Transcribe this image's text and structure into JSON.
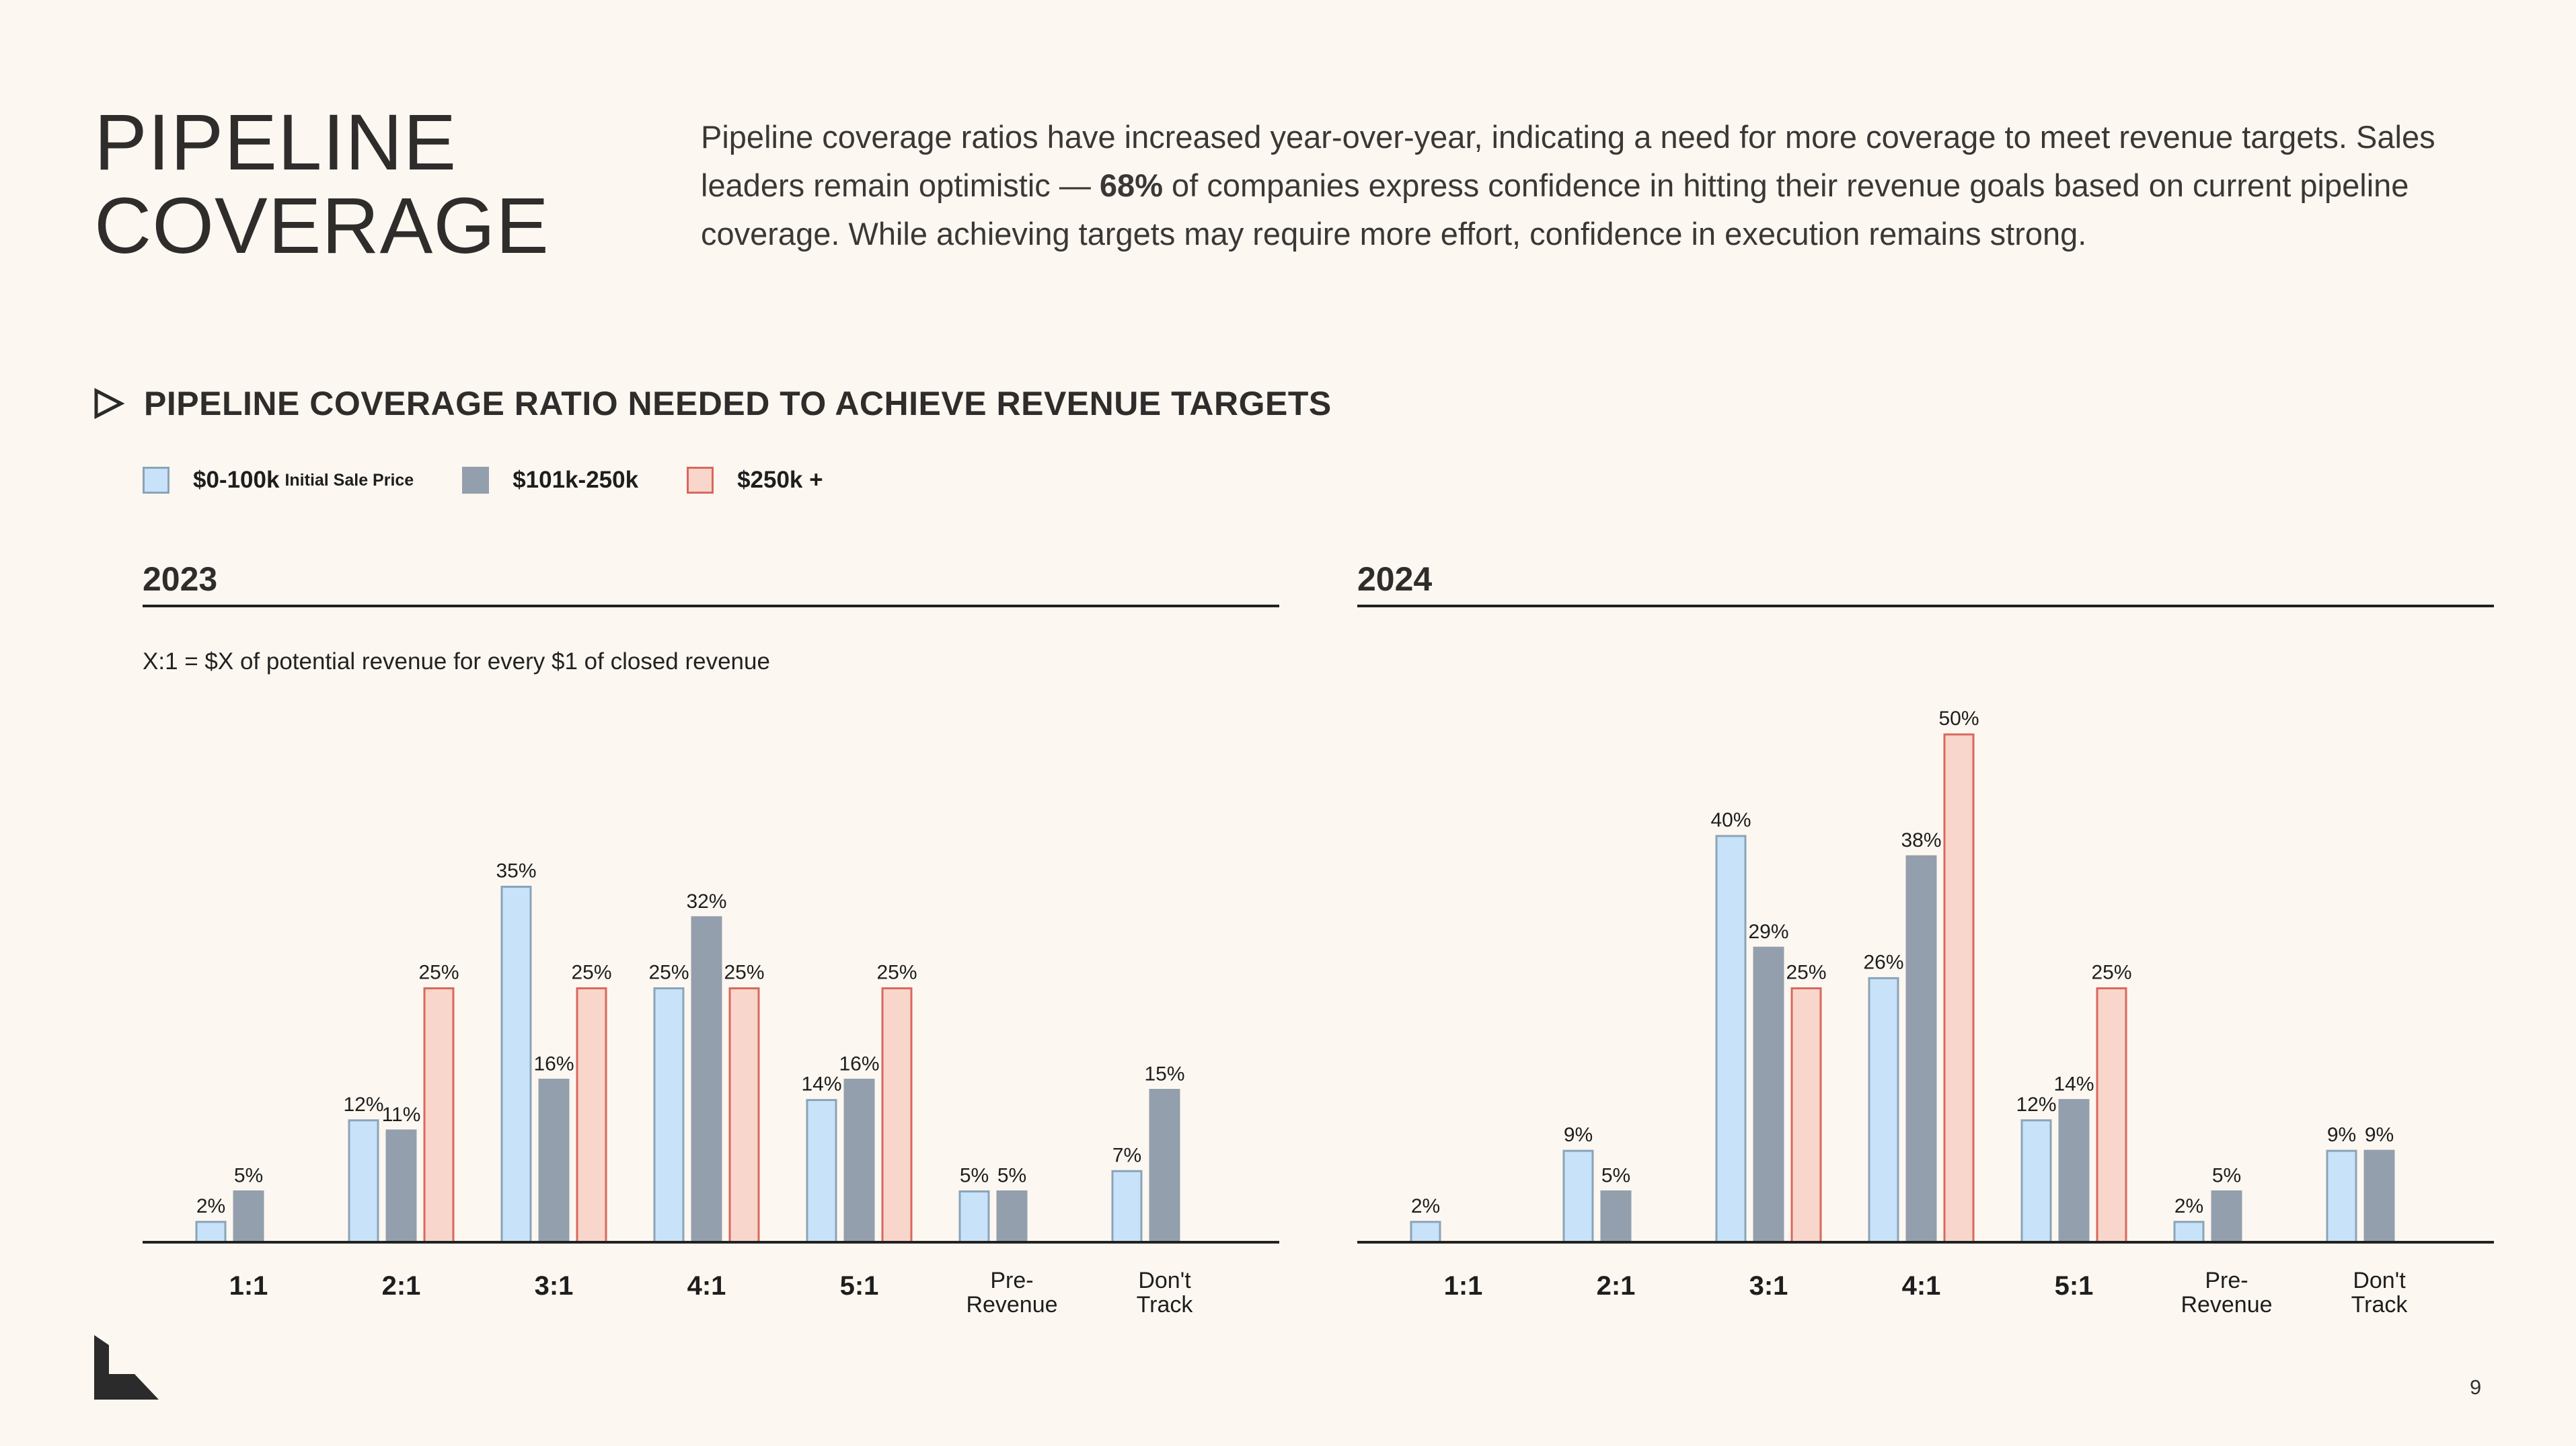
{
  "header": {
    "title_line1": "PIPELINE",
    "title_line2": "COVERAGE",
    "intro_part1": "Pipeline coverage ratios have increased year-over-year, indicating a need for more coverage to meet revenue targets. Sales leaders remain optimistic — ",
    "intro_bold": "68%",
    "intro_part2": " of companies express confidence in hitting their revenue goals based on current pipeline coverage. While achieving targets may require more effort, confidence in execution remains strong."
  },
  "section": {
    "icon": "triangle-play-outline-icon",
    "title": "PIPELINE COVERAGE RATIO NEEDED TO ACHIEVE REVENUE TARGETS"
  },
  "legend": [
    {
      "label": "$0-100k",
      "sublabel": "Initial Sale Price",
      "fill": "#c8e3f9",
      "stroke": "#8aa4b8"
    },
    {
      "label": "$101k-250k",
      "sublabel": "",
      "fill": "#939fac",
      "stroke": "#939fac"
    },
    {
      "label": "$250k +",
      "sublabel": "",
      "fill": "#f8d6cb",
      "stroke": "#d9685c"
    }
  ],
  "note": "X:1 = $X of potential revenue for every $1 of closed revenue",
  "colors": {
    "background": "#fdf7f1",
    "text": "#2d2b2a",
    "axis": "#222222"
  },
  "chart_data": [
    {
      "type": "bar",
      "title": "2023",
      "categories": [
        "1:1",
        "2:1",
        "3:1",
        "4:1",
        "5:1",
        "Pre-\nRevenue",
        "Don't\nTrack"
      ],
      "series": [
        {
          "name": "$0-100k Initial Sale Price",
          "values": [
            2,
            12,
            35,
            25,
            14,
            5,
            7
          ]
        },
        {
          "name": "$101k-250k",
          "values": [
            5,
            11,
            16,
            32,
            16,
            5,
            15
          ]
        },
        {
          "name": "$250k +",
          "values": [
            null,
            25,
            25,
            25,
            25,
            null,
            null
          ]
        }
      ],
      "value_suffix": "%",
      "ylim": [
        0,
        50
      ],
      "grid": false,
      "legend": "top-left"
    },
    {
      "type": "bar",
      "title": "2024",
      "categories": [
        "1:1",
        "2:1",
        "3:1",
        "4:1",
        "5:1",
        "Pre-\nRevenue",
        "Don't\nTrack"
      ],
      "series": [
        {
          "name": "$0-100k Initial Sale Price",
          "values": [
            2,
            9,
            40,
            26,
            12,
            2,
            9
          ]
        },
        {
          "name": "$101k-250k",
          "values": [
            null,
            5,
            29,
            38,
            14,
            5,
            9
          ]
        },
        {
          "name": "$250k +",
          "values": [
            null,
            null,
            25,
            50,
            25,
            null,
            null
          ]
        }
      ],
      "value_suffix": "%",
      "ylim": [
        0,
        50
      ],
      "grid": false,
      "legend": "top-left"
    }
  ],
  "page_number": "9",
  "logo_icon": "corner-logo-icon"
}
